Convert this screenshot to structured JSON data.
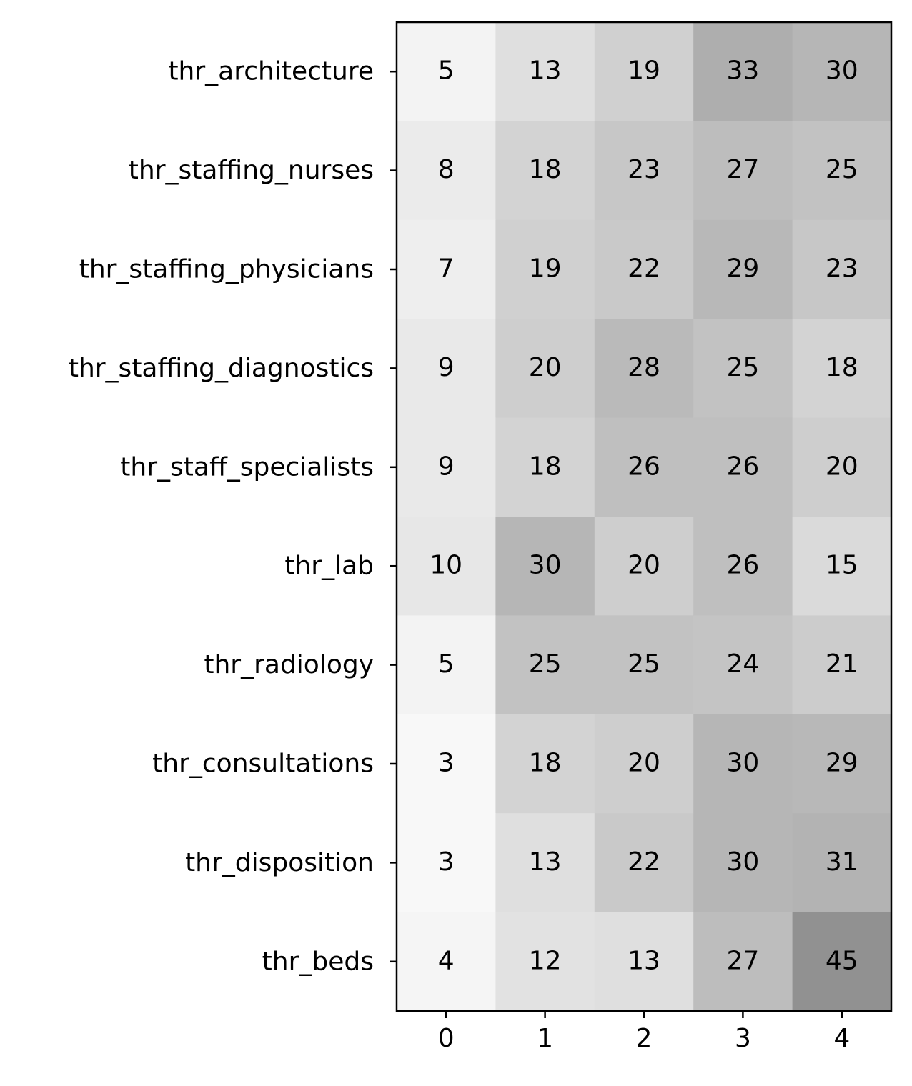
{
  "chart_data": {
    "type": "heatmap",
    "title": "",
    "xlabel": "",
    "ylabel": "",
    "x_categories": [
      "0",
      "1",
      "2",
      "3",
      "4"
    ],
    "y_categories": [
      "thr_architecture",
      "thr_staffing_nurses",
      "thr_staffing_physicians",
      "thr_staffing_diagnostics",
      "thr_staff_specialists",
      "thr_lab",
      "thr_radiology",
      "thr_consultations",
      "thr_disposition",
      "thr_beds"
    ],
    "values": [
      [
        5,
        13,
        19,
        33,
        30
      ],
      [
        8,
        18,
        23,
        27,
        25
      ],
      [
        7,
        19,
        22,
        29,
        23
      ],
      [
        9,
        20,
        28,
        25,
        18
      ],
      [
        9,
        18,
        26,
        26,
        20
      ],
      [
        10,
        30,
        20,
        26,
        15
      ],
      [
        5,
        25,
        25,
        24,
        21
      ],
      [
        3,
        18,
        20,
        30,
        29
      ],
      [
        3,
        13,
        22,
        30,
        31
      ],
      [
        4,
        12,
        13,
        27,
        45
      ]
    ],
    "colormap": "Greys",
    "vmin": 0,
    "vmax": 100,
    "annotated": true,
    "grid": false,
    "legend": "none"
  }
}
